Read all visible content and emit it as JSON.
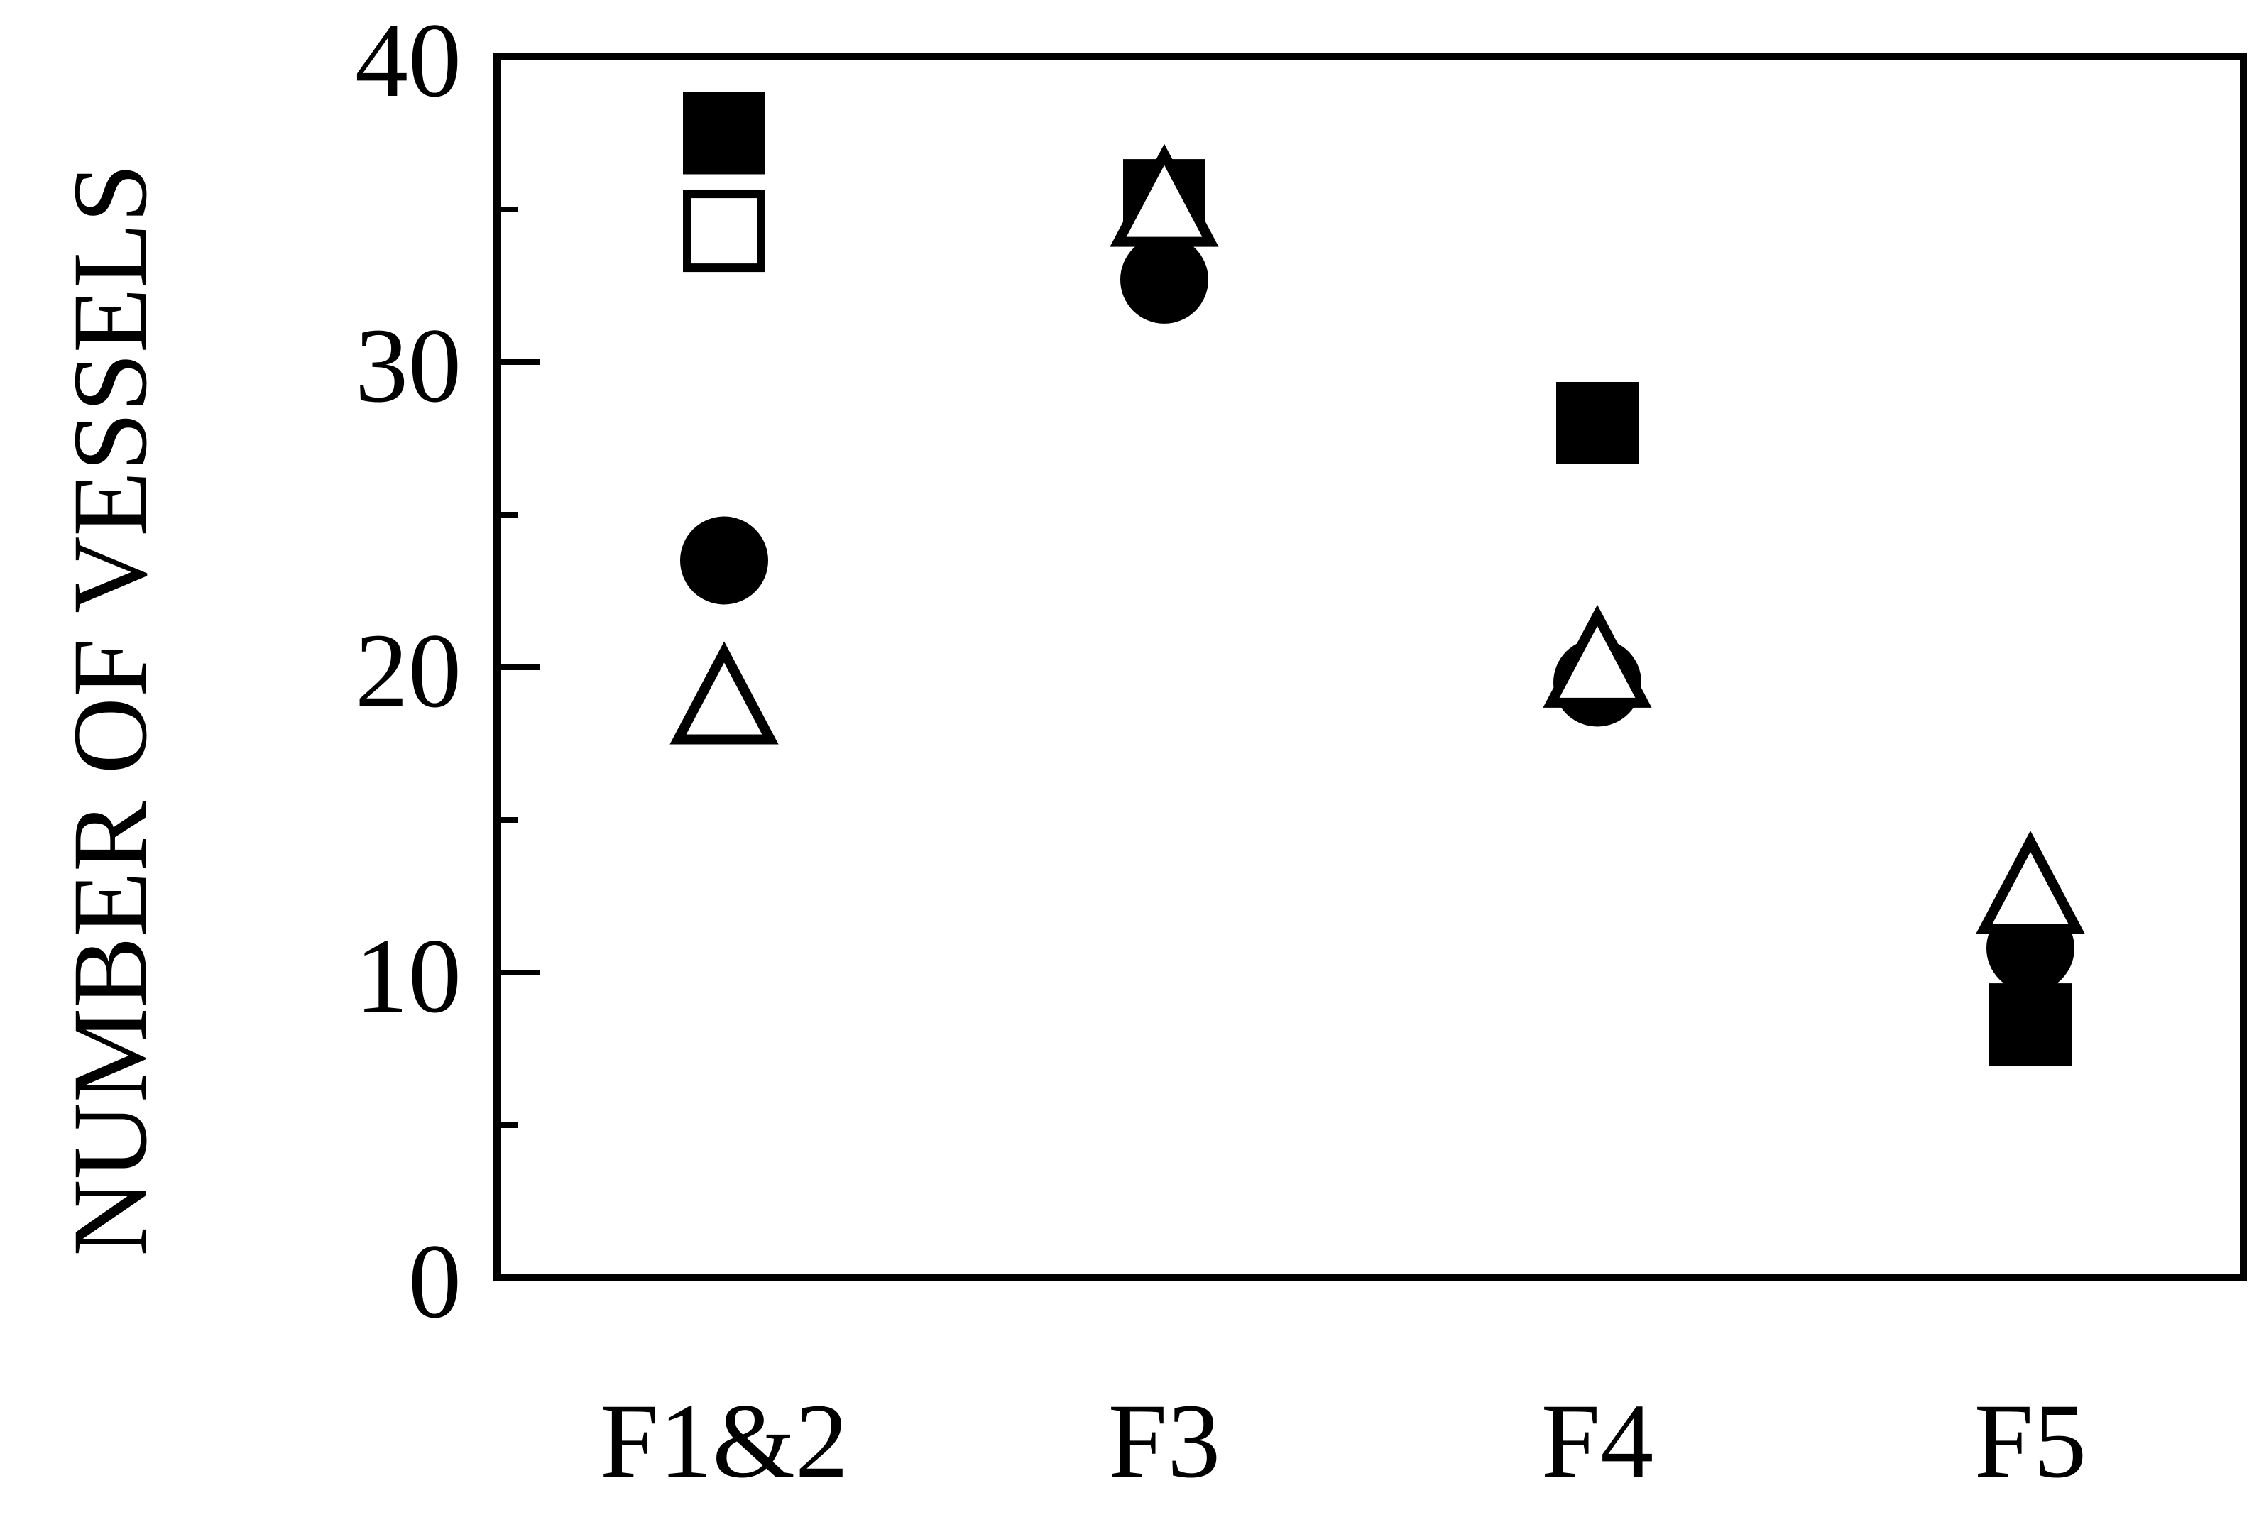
{
  "chart_data": {
    "type": "scatter",
    "title": "",
    "xlabel": "",
    "ylabel": "NUMBER OF VESSELS",
    "categories": [
      "F1&2",
      "F3",
      "F4",
      "F5"
    ],
    "ylim": [
      0,
      40
    ],
    "yticks": [
      0,
      10,
      20,
      30,
      40
    ],
    "y_minor_ticks": [
      5,
      15,
      25,
      35
    ],
    "grid": false,
    "legend": "none",
    "series": [
      {
        "marker": "filled-square",
        "color": "#000000",
        "values": [
          37.5,
          35.3,
          28.0,
          8.3
        ]
      },
      {
        "marker": "open-square",
        "color": "#000000",
        "values": [
          34.3,
          null,
          null,
          null
        ]
      },
      {
        "marker": "filled-circle",
        "color": "#000000",
        "values": [
          23.5,
          32.7,
          19.5,
          10.8
        ]
      },
      {
        "marker": "open-triangle",
        "color": "#000000",
        "values": [
          19.0,
          35.3,
          20.2,
          12.8
        ]
      }
    ]
  }
}
